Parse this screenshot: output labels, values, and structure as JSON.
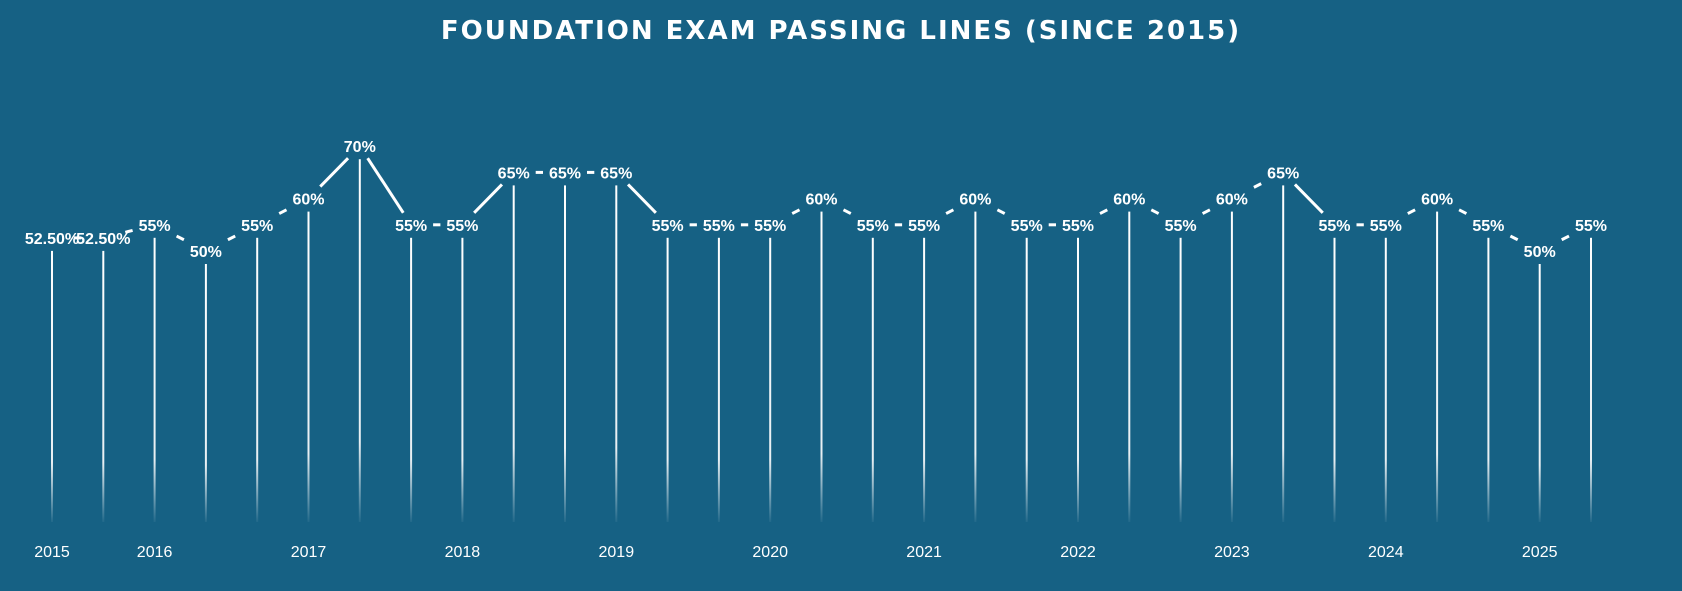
{
  "title": "FOUNDATION EXAM PASSING LINES (SINCE 2015)",
  "colors": {
    "background": "#166184",
    "line": "#ffffff",
    "text": "#ffffff"
  },
  "chart_data": {
    "type": "line",
    "title": "FOUNDATION EXAM PASSING LINES (SINCE 2015)",
    "xlabel": "",
    "ylabel": "",
    "grid": false,
    "legend": "none",
    "x_tick_labels": [
      "2015",
      "2016",
      "2017",
      "2018",
      "2019",
      "2020",
      "2021",
      "2022",
      "2023",
      "2024",
      "2025"
    ],
    "points": [
      {
        "year": "2015",
        "value": 52.5,
        "label": "52.50%"
      },
      {
        "year": "2015",
        "value": 52.5,
        "label": "52.50%"
      },
      {
        "year": "2016",
        "value": 55,
        "label": "55%"
      },
      {
        "year": "2016",
        "value": 50,
        "label": "50%"
      },
      {
        "year": "2016",
        "value": 55,
        "label": "55%"
      },
      {
        "year": "2017",
        "value": 60,
        "label": "60%"
      },
      {
        "year": "2017",
        "value": 70,
        "label": "70%"
      },
      {
        "year": "2017",
        "value": 55,
        "label": "55%"
      },
      {
        "year": "2018",
        "value": 55,
        "label": "55%"
      },
      {
        "year": "2018",
        "value": 65,
        "label": "65%"
      },
      {
        "year": "2018",
        "value": 65,
        "label": "65%"
      },
      {
        "year": "2019",
        "value": 65,
        "label": "65%"
      },
      {
        "year": "2019",
        "value": 55,
        "label": "55%"
      },
      {
        "year": "2019",
        "value": 55,
        "label": "55%"
      },
      {
        "year": "2020",
        "value": 55,
        "label": "55%"
      },
      {
        "year": "2020",
        "value": 60,
        "label": "60%"
      },
      {
        "year": "2020",
        "value": 55,
        "label": "55%"
      },
      {
        "year": "2021",
        "value": 55,
        "label": "55%"
      },
      {
        "year": "2021",
        "value": 60,
        "label": "60%"
      },
      {
        "year": "2021",
        "value": 55,
        "label": "55%"
      },
      {
        "year": "2022",
        "value": 55,
        "label": "55%"
      },
      {
        "year": "2022",
        "value": 60,
        "label": "60%"
      },
      {
        "year": "2022",
        "value": 55,
        "label": "55%"
      },
      {
        "year": "2023",
        "value": 60,
        "label": "60%"
      },
      {
        "year": "2023",
        "value": 65,
        "label": "65%"
      },
      {
        "year": "2023",
        "value": 55,
        "label": "55%"
      },
      {
        "year": "2024",
        "value": 55,
        "label": "55%"
      },
      {
        "year": "2024",
        "value": 60,
        "label": "60%"
      },
      {
        "year": "2024",
        "value": 55,
        "label": "55%"
      },
      {
        "year": "2025",
        "value": 50,
        "label": "50%"
      },
      {
        "year": "2025",
        "value": 55,
        "label": "55%"
      }
    ],
    "x_tick_indices": [
      0,
      2,
      5,
      8,
      11,
      14,
      17,
      20,
      23,
      26,
      29
    ]
  }
}
